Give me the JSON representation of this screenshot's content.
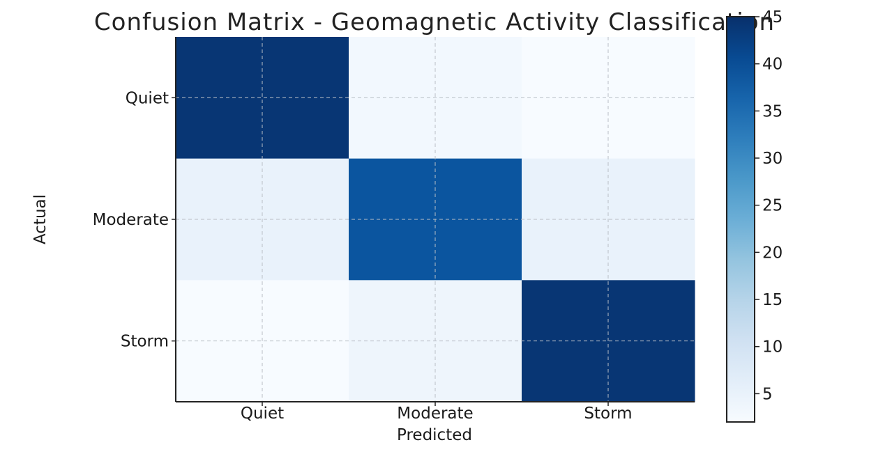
{
  "chart_data": {
    "type": "heatmap",
    "title": "Confusion Matrix - Geomagnetic Activity Classification",
    "xlabel": "Predicted",
    "ylabel": "Actual",
    "x_categories": [
      "Quiet",
      "Moderate",
      "Storm"
    ],
    "y_categories": [
      "Quiet",
      "Moderate",
      "Storm"
    ],
    "values": [
      [
        44,
        3,
        2
      ],
      [
        5,
        39,
        5
      ],
      [
        2,
        4,
        44
      ]
    ],
    "colorbar": {
      "min": 2,
      "max": 45,
      "ticks": [
        5,
        10,
        15,
        20,
        25,
        30,
        35,
        40,
        45
      ]
    },
    "colormap": "Blues",
    "grid": true,
    "colors": {
      "low": "#f7fbff",
      "high": "#08306b"
    }
  }
}
